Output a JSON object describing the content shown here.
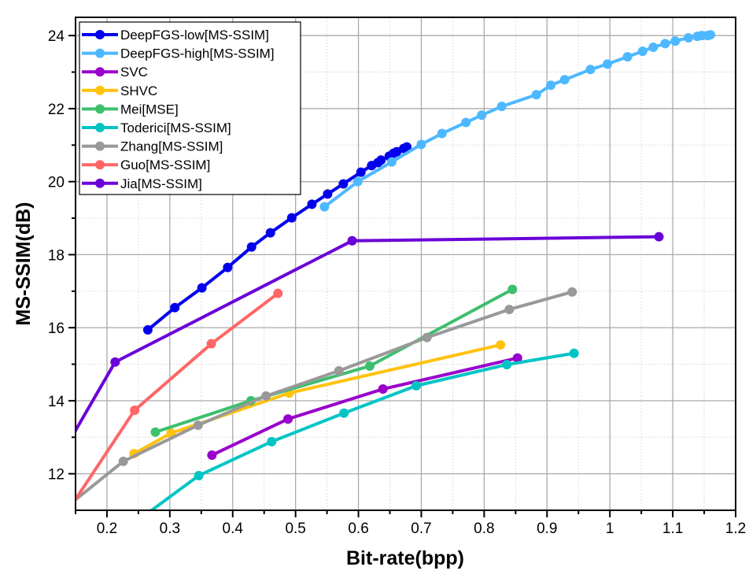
{
  "chart_data": {
    "type": "line",
    "title": "",
    "xlabel": "Bit-rate(bpp)",
    "ylabel": "MS-SSIM(dB)",
    "xlim": [
      0.15,
      1.2
    ],
    "ylim": [
      11,
      24.5
    ],
    "xticks": [
      0.2,
      0.3,
      0.4,
      0.5,
      0.6,
      0.7,
      0.8,
      0.9,
      1,
      1.1,
      1.2
    ],
    "xtick_labels": [
      "0.2",
      "0.3",
      "0.4",
      "0.5",
      "0.6",
      "0.7",
      "0.8",
      "0.9",
      "1",
      "1.1",
      "1.2"
    ],
    "yticks": [
      12,
      14,
      16,
      18,
      20,
      22,
      24
    ],
    "ytick_labels": [
      "12",
      "14",
      "16",
      "18",
      "20",
      "22",
      "24"
    ],
    "grid": true,
    "legend_position": "top-left",
    "series": [
      {
        "name": "DeepFGS-low[MS-SSIM]",
        "color": "#0000ee",
        "x": [
          0.265,
          0.308,
          0.351,
          0.392,
          0.43,
          0.46,
          0.494,
          0.526,
          0.551,
          0.576,
          0.604,
          0.621,
          0.631,
          0.636,
          0.649,
          0.656,
          0.661,
          0.672,
          0.677
        ],
        "y": [
          15.94,
          16.55,
          17.09,
          17.65,
          18.21,
          18.6,
          19.01,
          19.38,
          19.66,
          19.94,
          20.26,
          20.44,
          20.52,
          20.59,
          20.7,
          20.78,
          20.82,
          20.91,
          20.95
        ]
      },
      {
        "name": "DeepFGS-high[MS-SSIM]",
        "color": "#4db8ff",
        "x": [
          0.546,
          0.599,
          0.653,
          0.7,
          0.733,
          0.771,
          0.796,
          0.828,
          0.883,
          0.906,
          0.928,
          0.969,
          0.996,
          1.028,
          1.052,
          1.069,
          1.088,
          1.104,
          1.125,
          1.139,
          1.146,
          1.155,
          1.16
        ],
        "y": [
          19.31,
          20.0,
          20.54,
          21.02,
          21.32,
          21.62,
          21.82,
          22.06,
          22.38,
          22.64,
          22.79,
          23.07,
          23.22,
          23.42,
          23.57,
          23.68,
          23.78,
          23.85,
          23.94,
          23.98,
          24.0,
          24.0,
          24.02
        ]
      },
      {
        "name": "SVC",
        "color": "#9900cc",
        "x": [
          0.367,
          0.488,
          0.639,
          0.853
        ],
        "y": [
          12.51,
          13.5,
          14.32,
          15.17
        ]
      },
      {
        "name": "SHVC",
        "color": "#ffc20e",
        "x": [
          0.243,
          0.302,
          0.49,
          0.826
        ],
        "y": [
          12.55,
          13.11,
          14.21,
          15.53
        ]
      },
      {
        "name": "Mei[MSE]",
        "color": "#3dbf6e",
        "x": [
          0.277,
          0.429,
          0.618,
          0.845
        ],
        "y": [
          13.14,
          14.0,
          14.95,
          17.05
        ]
      },
      {
        "name": "Toderici[MS-SSIM]",
        "color": "#00c4c4",
        "x": [
          0.2,
          0.346,
          0.462,
          0.577,
          0.692,
          0.836,
          0.943
        ],
        "y": [
          10.1,
          11.95,
          12.88,
          13.66,
          14.41,
          14.99,
          15.3
        ]
      },
      {
        "name": "Zhang[MS-SSIM]",
        "color": "#999999",
        "x": [
          0.1,
          0.226,
          0.345,
          0.453,
          0.569,
          0.709,
          0.84,
          0.94
        ],
        "y": [
          10.6,
          12.34,
          13.33,
          14.13,
          14.82,
          15.73,
          16.5,
          16.98
        ]
      },
      {
        "name": "Guo[MS-SSIM]",
        "color": "#ff6666",
        "x": [
          0.1,
          0.244,
          0.366,
          0.472
        ],
        "y": [
          10.0,
          13.74,
          15.56,
          16.94
        ]
      },
      {
        "name": "Jia[MS-SSIM]",
        "color": "#6a00d8",
        "x": [
          0.1,
          0.213,
          0.59,
          1.078
        ],
        "y": [
          11.7,
          15.06,
          18.38,
          18.49
        ]
      }
    ]
  }
}
